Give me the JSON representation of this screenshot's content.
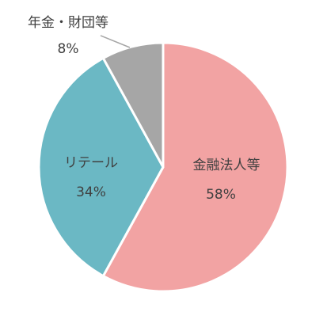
{
  "chart_data": {
    "type": "pie",
    "title": "",
    "slices": [
      {
        "label": "金融法人等",
        "value": 58,
        "value_label": "58%",
        "color": "#f2a3a3"
      },
      {
        "label": "リテール",
        "value": 34,
        "value_label": "34%",
        "color": "#6bb8c4"
      },
      {
        "label": "年金・財団等",
        "value": 8,
        "value_label": "8%",
        "color": "#a6a6a6"
      }
    ],
    "legend": "none",
    "start": "12 o'clock",
    "direction": "clockwise"
  }
}
